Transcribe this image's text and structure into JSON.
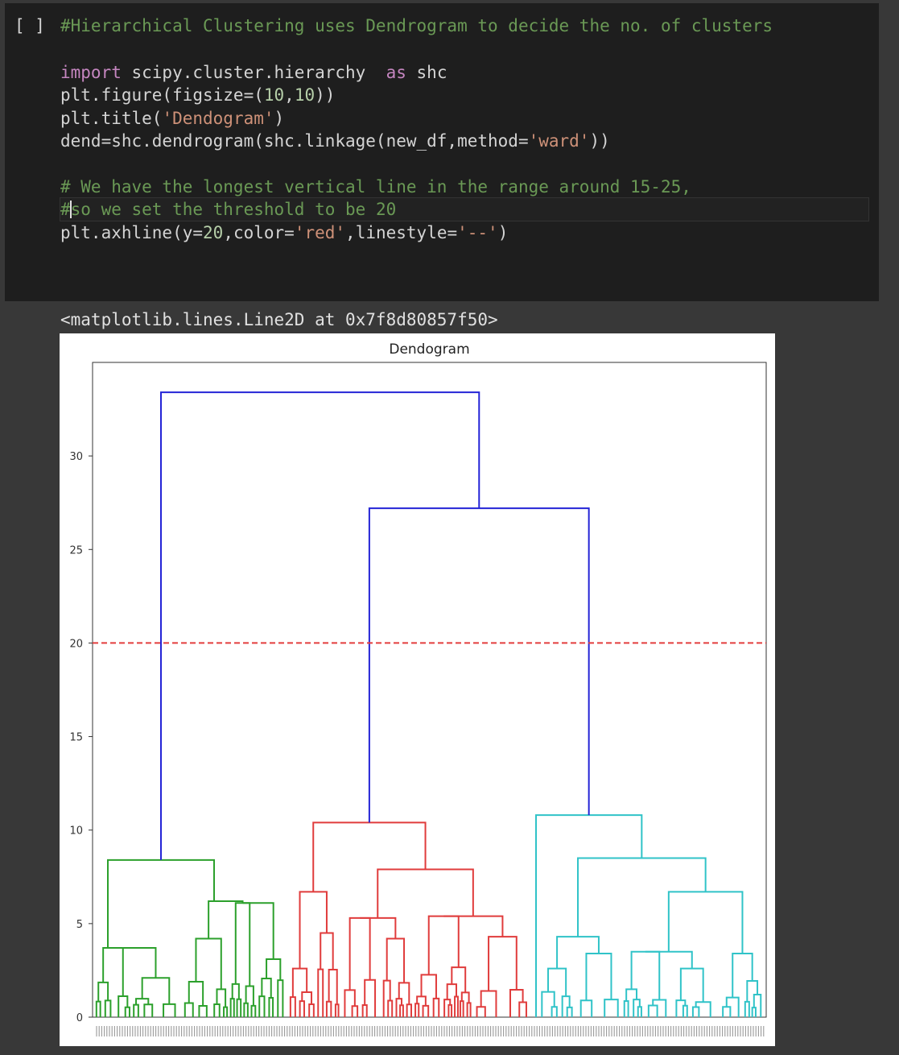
{
  "cell": {
    "run_button": "[ ]",
    "code_lines": [
      [
        {
          "t": "#Hierarchical Clustering uses Dendrogram to decide the no. of clusters",
          "c": "cmt"
        }
      ],
      [],
      [
        {
          "t": "import",
          "c": "kw"
        },
        {
          "t": " scipy.cluster.hierarchy  ",
          "c": ""
        },
        {
          "t": "as",
          "c": "kw"
        },
        {
          "t": " shc",
          "c": ""
        }
      ],
      [
        {
          "t": "plt.figure(figsize=(",
          "c": ""
        },
        {
          "t": "10",
          "c": "num"
        },
        {
          "t": ",",
          "c": ""
        },
        {
          "t": "10",
          "c": "num"
        },
        {
          "t": "))",
          "c": ""
        }
      ],
      [
        {
          "t": "plt.title(",
          "c": ""
        },
        {
          "t": "'Dendogram'",
          "c": "str"
        },
        {
          "t": ")",
          "c": ""
        }
      ],
      [
        {
          "t": "dend=shc.dendrogram(shc.linkage(new_df,method=",
          "c": ""
        },
        {
          "t": "'ward'",
          "c": "str"
        },
        {
          "t": "))",
          "c": ""
        }
      ],
      [],
      [
        {
          "t": "# We have the longest vertical line in the range around 15-25,",
          "c": "cmt"
        }
      ],
      [
        {
          "t": "#",
          "c": "cmt"
        },
        {
          "t": "|",
          "c": "caret"
        },
        {
          "t": "so we set the threshold to be 20",
          "c": "cmt"
        }
      ],
      [
        {
          "t": "plt.axhline(y=",
          "c": ""
        },
        {
          "t": "20",
          "c": "num"
        },
        {
          "t": ",color=",
          "c": ""
        },
        {
          "t": "'red'",
          "c": "str"
        },
        {
          "t": ",linestyle=",
          "c": ""
        },
        {
          "t": "'--'",
          "c": "str"
        },
        {
          "t": ")",
          "c": ""
        }
      ]
    ]
  },
  "output": {
    "repr": "<matplotlib.lines.Line2D at 0x7f8d80857f50>"
  },
  "chart_data": {
    "type": "dendrogram",
    "title": "Dendogram",
    "xlabel": "",
    "ylabel": "",
    "ylim": [
      0,
      35
    ],
    "yticks": [
      0,
      5,
      10,
      15,
      20,
      25,
      30
    ],
    "threshold_line": {
      "y": 20,
      "color": "#e33d3d",
      "linestyle": "dashed"
    },
    "colors": {
      "green": "#2ca02c",
      "red": "#e03c3c",
      "cyan": "#30c3c8",
      "blue": "#2424d6"
    },
    "top_links": [
      {
        "color": "blue",
        "height": 33.4,
        "left": "green-cluster",
        "right": "red+cyan"
      },
      {
        "color": "blue",
        "height": 27.2,
        "left": "red-cluster",
        "right": "cyan-cluster"
      }
    ],
    "clusters": [
      {
        "color": "green",
        "root_height": 8.4,
        "sub_heights": [
          6.2,
          3.8,
          6.1,
          4.2
        ]
      },
      {
        "color": "red",
        "root_height": 10.4,
        "sub_heights": [
          6.7,
          7.9,
          5.3,
          4.5,
          5.4,
          4.3
        ]
      },
      {
        "color": "cyan",
        "root_height": 10.8,
        "sub_heights": [
          8.5,
          6.7,
          4.3,
          3.4,
          3.5,
          2.6
        ]
      }
    ]
  }
}
